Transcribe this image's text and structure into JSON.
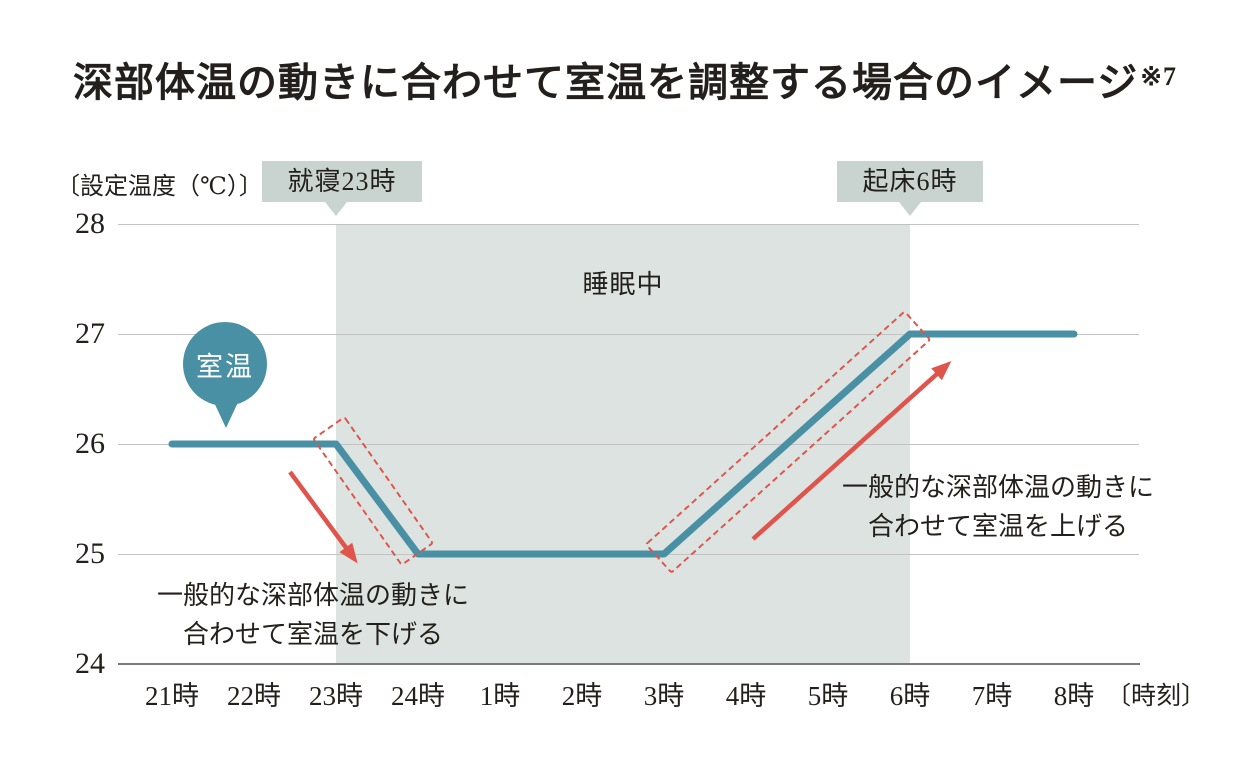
{
  "title": {
    "text": "深部体温の動きに合わせて室温を調整する場合のイメージ",
    "note": "※7"
  },
  "chart": {
    "y_axis_label": "〔設定温度（℃）〕",
    "y_ticks": [
      "28",
      "27",
      "26",
      "25",
      "24"
    ],
    "x_ticks": [
      "21時",
      "22時",
      "23時",
      "24時",
      "1時",
      "2時",
      "3時",
      "4時",
      "5時",
      "6時",
      "7時",
      "8時"
    ],
    "x_axis_suffix": "〔時刻〕",
    "bedtime_badge": "就寝23時",
    "wake_badge": "起床6時",
    "sleep_region_label": "睡眠中",
    "series_label": "室温",
    "annotation_down": [
      "一般的な深部体温の動きに",
      "合わせて室温を下げる"
    ],
    "annotation_up": [
      "一般的な深部体温の動きに",
      "合わせて室温を上げる"
    ]
  },
  "colors": {
    "line": "#4A90A4",
    "accent_red": "#DF544B",
    "region": "#DCE3E0",
    "badge": "#C9D4D0",
    "grid": "#C3C3C3",
    "axis": "#7A7A7A",
    "text": "#231F1C"
  },
  "chart_data": {
    "type": "line",
    "title": "深部体温の動きに合わせて室温を調整する場合のイメージ※7",
    "xlabel": "時刻",
    "ylabel": "設定温度（℃）",
    "categories": [
      "21時",
      "22時",
      "23時",
      "24時",
      "1時",
      "2時",
      "3時",
      "4時",
      "5時",
      "6時",
      "7時",
      "8時"
    ],
    "ylim": [
      24,
      28
    ],
    "y_ticks": [
      24,
      25,
      26,
      27,
      28
    ],
    "grid": true,
    "legend": "none",
    "series": [
      {
        "name": "室温",
        "unit": "℃",
        "vertices_hour_temp": [
          [
            "21時",
            26
          ],
          [
            "23時",
            26
          ],
          [
            "24時",
            25
          ],
          [
            "3時",
            25
          ],
          [
            "6時",
            27
          ],
          [
            "8時",
            27
          ]
        ],
        "vertex_indices": [
          [
            0,
            26
          ],
          [
            2,
            26
          ],
          [
            3,
            25
          ],
          [
            6,
            25
          ],
          [
            9,
            27
          ],
          [
            11,
            27
          ]
        ]
      }
    ],
    "shaded_region": {
      "from": "23時",
      "to": "6時",
      "label": "睡眠中"
    },
    "event_markers": [
      {
        "label": "就寝23時",
        "at": "23時"
      },
      {
        "label": "起床6時",
        "at": "6時"
      }
    ],
    "annotations": [
      {
        "text": "一般的な深部体温の動きに合わせて室温を下げる",
        "direction": "down",
        "temp_change": "26→25"
      },
      {
        "text": "一般的な深部体温の動きに合わせて室温を上げる",
        "direction": "up",
        "temp_change": "25→27"
      }
    ]
  }
}
